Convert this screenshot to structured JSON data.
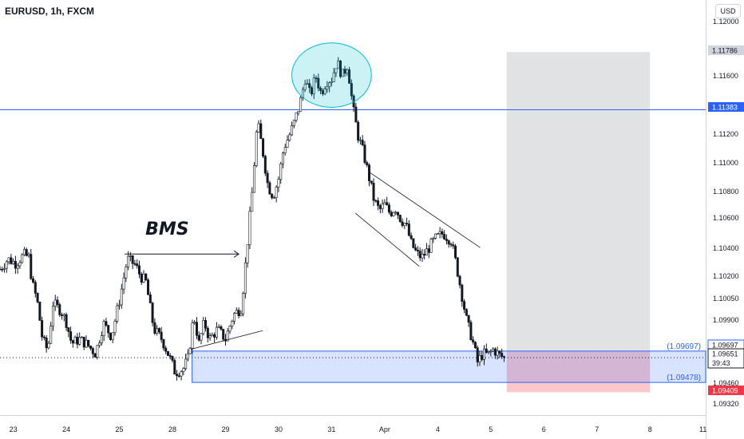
{
  "title": "EURUSD, 1h, FXCM",
  "currency_button": "USD",
  "chart_data": {
    "type": "candlestick",
    "symbol": "EURUSD",
    "interval": "1h",
    "broker": "FXCM",
    "ylim": [
      1.0925,
      1.1215
    ],
    "xlim": [
      0,
      13.3
    ],
    "x_ticks": [
      {
        "label": "23",
        "x": 0.25
      },
      {
        "label": "24",
        "x": 1.25
      },
      {
        "label": "25",
        "x": 2.25
      },
      {
        "label": "28",
        "x": 3.25
      },
      {
        "label": "29",
        "x": 4.25
      },
      {
        "label": "30",
        "x": 5.25
      },
      {
        "label": "31",
        "x": 6.25
      },
      {
        "label": "Apr",
        "x": 7.25
      },
      {
        "label": "4",
        "x": 8.25
      },
      {
        "label": "5",
        "x": 9.25
      },
      {
        "label": "6",
        "x": 10.25
      },
      {
        "label": "7",
        "x": 11.25
      },
      {
        "label": "8",
        "x": 12.25
      },
      {
        "label": "11",
        "x": 13.25
      }
    ],
    "y_ticks": [
      "1.12000",
      "1.11600",
      "1.11200",
      "1.11000",
      "1.10800",
      "1.10600",
      "1.10400",
      "1.10200",
      "1.10050",
      "1.09900",
      "1.09460",
      "1.09320"
    ],
    "price_labels": [
      {
        "value": 1.11786,
        "text": "1.11786",
        "style": "gray"
      },
      {
        "value": 1.11383,
        "text": "1.11383",
        "style": "blue"
      },
      {
        "value": 1.09697,
        "text": "1.09697",
        "style": "outline"
      },
      {
        "value": 1.09651,
        "text": "1.09651",
        "sub": "39:43",
        "style": "dark"
      },
      {
        "value": 1.09409,
        "text": "1.09409",
        "style": "red"
      }
    ],
    "horizontal_line": {
      "value": 1.11383,
      "color": "#2962ff"
    },
    "last_price_line": 1.09651,
    "demand_zone": {
      "top": 1.09697,
      "bottom": 1.09478,
      "x_start": 3.62,
      "top_label": "(1.09697)",
      "bottom_label": "(1.09478)",
      "color": "#2962ff"
    },
    "position_box": {
      "x_start": 9.55,
      "x_end": 12.25,
      "target": 1.11786,
      "entry": 1.09697,
      "stop": 1.09409
    },
    "annotations": [
      {
        "type": "text",
        "text": "BMS",
        "x": 3.15,
        "y": 1.1051
      },
      {
        "type": "arrow",
        "x1": 2.35,
        "y1": 1.10375,
        "x2": 4.5,
        "y2": 1.10375
      },
      {
        "type": "circle",
        "cx": 6.25,
        "cy": 1.11625,
        "rx_days": 0.75,
        "ry_price": 0.00225
      },
      {
        "type": "line",
        "x1": 3.6,
        "y1": 1.0971,
        "x2": 4.95,
        "y2": 1.0984
      },
      {
        "type": "line",
        "x1": 6.95,
        "y1": 1.1095,
        "x2": 9.05,
        "y2": 1.1042
      },
      {
        "type": "line",
        "x1": 6.7,
        "y1": 1.1066,
        "x2": 7.9,
        "y2": 1.1029
      }
    ],
    "path": [
      [
        0.0,
        1.1027
      ],
      [
        0.15,
        1.1034
      ],
      [
        0.3,
        1.1031
      ],
      [
        0.45,
        1.1037
      ],
      [
        0.55,
        1.1035
      ],
      [
        0.6,
        1.1018
      ],
      [
        0.7,
        1.1005
      ],
      [
        0.8,
        1.0978
      ],
      [
        0.9,
        1.097
      ],
      [
        1.0,
        1.1003
      ],
      [
        1.15,
        1.0998
      ],
      [
        1.25,
        1.099
      ],
      [
        1.35,
        1.0975
      ],
      [
        1.5,
        1.0978
      ],
      [
        1.65,
        1.0974
      ],
      [
        1.8,
        1.0968
      ],
      [
        1.95,
        1.0989
      ],
      [
        2.1,
        1.098
      ],
      [
        2.25,
        1.1005
      ],
      [
        2.4,
        1.1034
      ],
      [
        2.55,
        1.103
      ],
      [
        2.65,
        1.1022
      ],
      [
        2.75,
        1.1018
      ],
      [
        2.9,
        1.0985
      ],
      [
        3.05,
        1.0978
      ],
      [
        3.2,
        1.0965
      ],
      [
        3.3,
        1.0955
      ],
      [
        3.45,
        1.0957
      ],
      [
        3.55,
        1.0965
      ],
      [
        3.65,
        1.0995
      ],
      [
        3.75,
        1.0975
      ],
      [
        3.85,
        1.099
      ],
      [
        3.95,
        1.0978
      ],
      [
        4.1,
        1.0985
      ],
      [
        4.25,
        1.0978
      ],
      [
        4.4,
        1.0995
      ],
      [
        4.55,
        1.1
      ],
      [
        4.65,
        1.104
      ],
      [
        4.75,
        1.108
      ],
      [
        4.85,
        1.113
      ],
      [
        4.95,
        1.111
      ],
      [
        5.05,
        1.1085
      ],
      [
        5.15,
        1.1078
      ],
      [
        5.25,
        1.109
      ],
      [
        5.35,
        1.1112
      ],
      [
        5.45,
        1.112
      ],
      [
        5.55,
        1.113
      ],
      [
        5.65,
        1.1142
      ],
      [
        5.75,
        1.116
      ],
      [
        5.85,
        1.1148
      ],
      [
        5.95,
        1.1162
      ],
      [
        6.05,
        1.115
      ],
      [
        6.15,
        1.1158
      ],
      [
        6.25,
        1.116
      ],
      [
        6.35,
        1.1172
      ],
      [
        6.45,
        1.1162
      ],
      [
        6.55,
        1.117
      ],
      [
        6.65,
        1.114
      ],
      [
        6.75,
        1.112
      ],
      [
        6.85,
        1.1108
      ],
      [
        6.95,
        1.1092
      ],
      [
        7.05,
        1.1075
      ],
      [
        7.15,
        1.1068
      ],
      [
        7.25,
        1.1072
      ],
      [
        7.35,
        1.1066
      ],
      [
        7.45,
        1.107
      ],
      [
        7.55,
        1.1062
      ],
      [
        7.65,
        1.1058
      ],
      [
        7.75,
        1.1045
      ],
      [
        7.85,
        1.1038
      ],
      [
        7.95,
        1.1035
      ],
      [
        8.05,
        1.104
      ],
      [
        8.2,
        1.1048
      ],
      [
        8.35,
        1.1052
      ],
      [
        8.5,
        1.1047
      ],
      [
        8.6,
        1.103
      ],
      [
        8.7,
        1.101
      ],
      [
        8.8,
        1.099
      ],
      [
        8.9,
        1.0978
      ],
      [
        9.0,
        1.0962
      ],
      [
        9.1,
        1.0968
      ],
      [
        9.2,
        1.0967
      ],
      [
        9.3,
        1.0971
      ],
      [
        9.4,
        1.0967
      ],
      [
        9.5,
        1.0965
      ]
    ]
  }
}
